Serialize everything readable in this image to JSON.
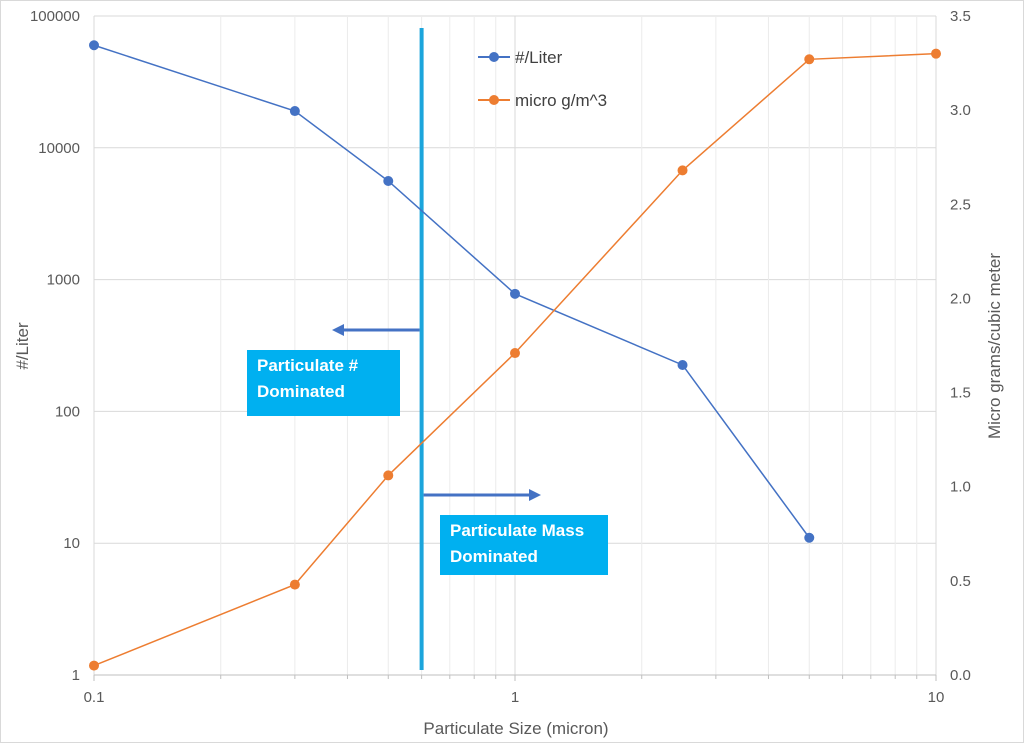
{
  "chart_data": {
    "type": "line",
    "x": [
      0.1,
      0.3,
      0.5,
      1,
      2.5,
      5,
      10
    ],
    "xlabel": "Particulate Size (micron)",
    "xscale": "log",
    "xlim": [
      0.1,
      10
    ],
    "xticks": [
      "0.1",
      "1",
      "10"
    ],
    "ylabel": "#/Liter",
    "yscale": "log",
    "ylim": [
      1,
      100000
    ],
    "yticks": [
      "1",
      "10",
      "100",
      "1000",
      "10000",
      "100000"
    ],
    "y2label": "Micro grams/cubic meter",
    "y2lim": [
      0.0,
      3.5
    ],
    "y2ticks": [
      "0.0",
      "0.5",
      "1.0",
      "1.5",
      "2.0",
      "2.5",
      "3.0",
      "3.5"
    ],
    "grid": true,
    "legend_position": "top-center",
    "series": [
      {
        "name": "#/Liter",
        "axis": "left",
        "color": "#4472c4",
        "x": [
          0.1,
          0.3,
          0.5,
          1,
          2.5,
          5
        ],
        "values": [
          60000,
          19000,
          5600,
          780,
          225,
          11
        ]
      },
      {
        "name": "micro g/m^3",
        "axis": "right",
        "color": "#ed7d31",
        "x": [
          0.1,
          0.3,
          0.5,
          1,
          2.5,
          5,
          10
        ],
        "values": [
          0.05,
          0.48,
          1.06,
          1.71,
          2.68,
          3.27,
          3.3
        ]
      }
    ],
    "divider": {
      "x": 0.6,
      "color": "#1ba5dc"
    },
    "annotations": [
      {
        "lines": [
          "Particulate #",
          "Dominated"
        ],
        "color": "#00b0f0",
        "arrow": "left"
      },
      {
        "lines": [
          "Particulate Mass",
          "Dominated"
        ],
        "color": "#00b0f0",
        "arrow": "right"
      }
    ],
    "arrow_color": "#4472c4"
  }
}
